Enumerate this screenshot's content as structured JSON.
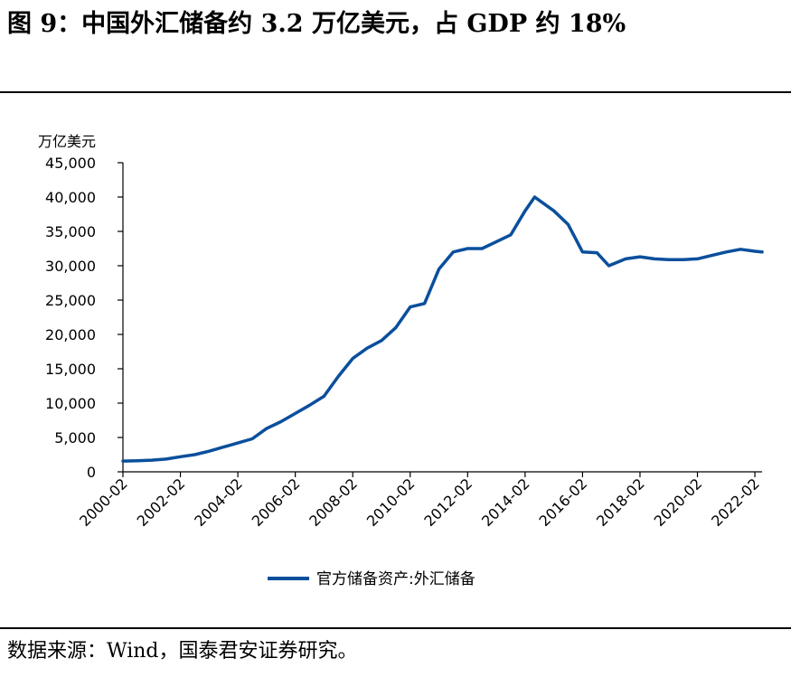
{
  "page": {
    "title": "图 9：中国外汇储备约 3.2 万亿美元，占 GDP 约 18%",
    "source": "数据来源：Wind，国泰君安证券研究。"
  },
  "chart_data": {
    "type": "line",
    "ylabel": "万亿美元",
    "ylim": [
      0,
      45000
    ],
    "yticks": [
      0,
      5000,
      10000,
      15000,
      20000,
      25000,
      30000,
      35000,
      40000,
      45000
    ],
    "ytick_labels": [
      "0",
      "5,000",
      "10,000",
      "15,000",
      "20,000",
      "25,000",
      "30,000",
      "35,000",
      "40,000",
      "45,000"
    ],
    "xlim": [
      "2000-02",
      "2022-05"
    ],
    "xticks": [
      "2000-02",
      "2002-02",
      "2004-02",
      "2006-02",
      "2008-02",
      "2010-02",
      "2012-02",
      "2014-02",
      "2016-02",
      "2018-02",
      "2020-02",
      "2022-02"
    ],
    "grid": false,
    "legend_position": "bottom",
    "line_color": "#0a4f9c",
    "series": [
      {
        "name": "官方储备资产:外汇储备",
        "x": [
          "2000-02",
          "2000-08",
          "2001-02",
          "2001-08",
          "2002-02",
          "2002-08",
          "2003-02",
          "2003-08",
          "2004-02",
          "2004-08",
          "2005-02",
          "2005-08",
          "2006-02",
          "2006-08",
          "2007-02",
          "2007-08",
          "2008-02",
          "2008-08",
          "2009-02",
          "2009-08",
          "2010-02",
          "2010-08",
          "2011-02",
          "2011-08",
          "2012-02",
          "2012-08",
          "2013-02",
          "2013-08",
          "2014-02",
          "2014-06",
          "2014-08",
          "2015-02",
          "2015-08",
          "2016-02",
          "2016-08",
          "2017-01",
          "2017-08",
          "2018-02",
          "2018-08",
          "2019-02",
          "2019-08",
          "2020-02",
          "2020-08",
          "2021-02",
          "2021-08",
          "2022-02",
          "2022-05"
        ],
        "values": [
          1560,
          1600,
          1700,
          1850,
          2200,
          2500,
          3000,
          3600,
          4200,
          4800,
          6300,
          7300,
          8500,
          9700,
          11000,
          13900,
          16500,
          18000,
          19100,
          21000,
          24000,
          24500,
          29500,
          32000,
          32500,
          32500,
          33500,
          34500,
          38000,
          40000,
          39500,
          38000,
          36000,
          32000,
          31900,
          30000,
          31000,
          31300,
          31000,
          30900,
          30900,
          31000,
          31500,
          32000,
          32400,
          32100,
          32000
        ]
      }
    ]
  }
}
